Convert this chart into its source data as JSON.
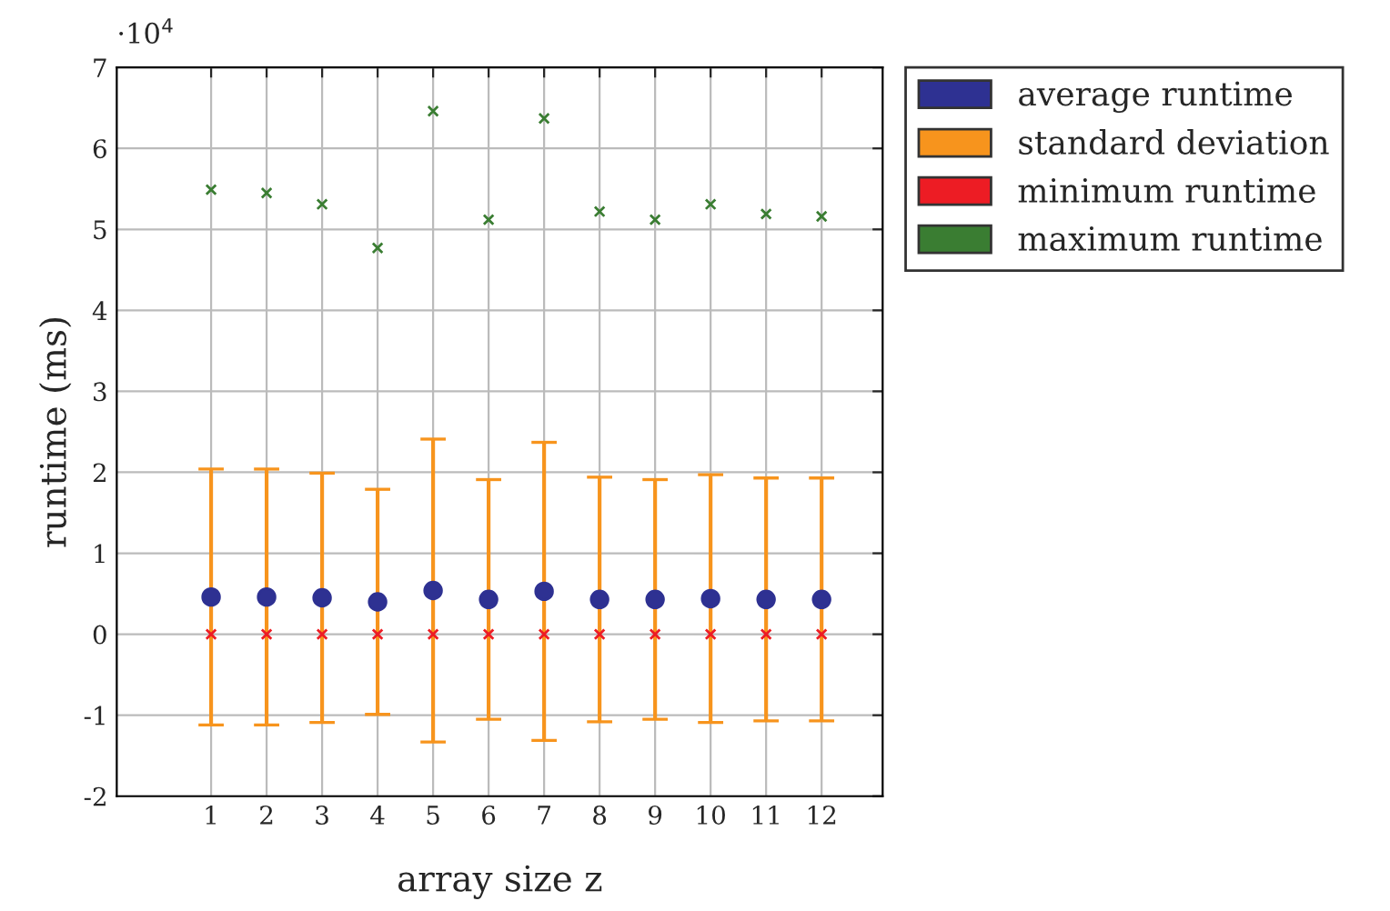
{
  "chart_data": {
    "type": "scatter",
    "xlabel": "array size z",
    "ylabel": "runtime (ms)",
    "categories": [
      "1",
      "2",
      "3",
      "4",
      "5",
      "6",
      "7",
      "8",
      "9",
      "10",
      "11",
      "12"
    ],
    "series": [
      {
        "name": "average runtime",
        "color": "#2e3192",
        "marker": "circle",
        "values": [
          0.46,
          0.46,
          0.45,
          0.4,
          0.54,
          0.43,
          0.53,
          0.43,
          0.43,
          0.44,
          0.43,
          0.43
        ],
        "errors": [
          1.58,
          1.58,
          1.54,
          1.39,
          1.87,
          1.48,
          1.84,
          1.51,
          1.48,
          1.53,
          1.5,
          1.5
        ]
      },
      {
        "name": "standard deviation",
        "color": "#f7941d",
        "values": [
          null,
          null,
          null,
          null,
          null,
          null,
          null,
          null,
          null,
          null,
          null,
          null
        ]
      },
      {
        "name": "minimum runtime",
        "color": "#ed1c24",
        "marker": "cross",
        "values": [
          0,
          0,
          0,
          0,
          0,
          0,
          0,
          0,
          0,
          0,
          0,
          0
        ]
      },
      {
        "name": "maximum runtime",
        "color": "#3a7d32",
        "marker": "cross",
        "values": [
          5.49,
          5.45,
          5.31,
          4.77,
          6.46,
          5.12,
          6.37,
          5.22,
          5.12,
          5.31,
          5.19,
          5.16
        ]
      }
    ],
    "ylim": [
      -2,
      7
    ],
    "yticks": [
      -2,
      -1,
      0,
      1,
      2,
      3,
      4,
      5,
      6,
      7
    ],
    "annotations": [
      "·10$^{4}$"
    ],
    "grid": true,
    "legend": "top right"
  }
}
